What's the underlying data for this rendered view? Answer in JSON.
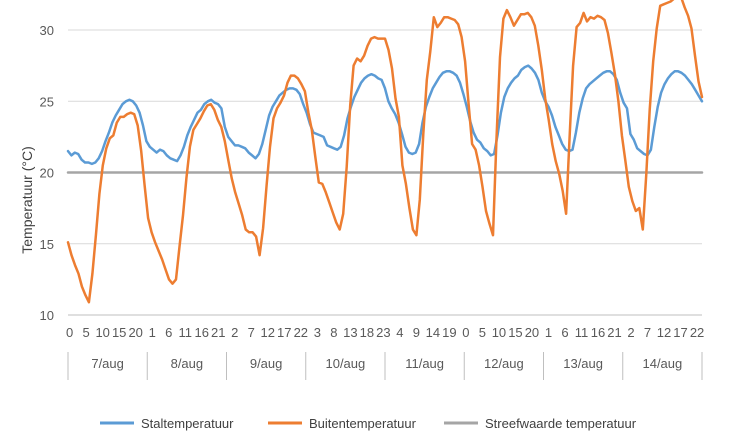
{
  "chart_data": {
    "type": "line",
    "ylabel": "Temperatuur (°C)",
    "ylim": [
      10,
      30
    ],
    "yticks": [
      10,
      15,
      20,
      25,
      30
    ],
    "grid": "horizontal",
    "legend_position": "bottom",
    "days": [
      {
        "label": "7/aug",
        "hour_ticks": [
          "0",
          "5",
          "10",
          "15",
          "20"
        ]
      },
      {
        "label": "8/aug",
        "hour_ticks": [
          "1",
          "6",
          "11",
          "16",
          "21"
        ]
      },
      {
        "label": "9/aug",
        "hour_ticks": [
          "2",
          "7",
          "12",
          "17",
          "22"
        ]
      },
      {
        "label": "10/aug",
        "hour_ticks": [
          "3",
          "8",
          "13",
          "18",
          "23"
        ]
      },
      {
        "label": "11/aug",
        "hour_ticks": [
          "4",
          "9",
          "14",
          "19"
        ]
      },
      {
        "label": "12/aug",
        "hour_ticks": [
          "0",
          "5",
          "10",
          "15",
          "20"
        ]
      },
      {
        "label": "13/aug",
        "hour_ticks": [
          "1",
          "6",
          "11",
          "16",
          "21"
        ]
      },
      {
        "label": "14/aug",
        "hour_ticks": [
          "2",
          "7",
          "12",
          "17",
          "22"
        ]
      }
    ],
    "series": [
      {
        "name": "Staltemperatuur",
        "color": "#5B9BD5",
        "values": [
          21.5,
          21.2,
          21.4,
          21.3,
          20.9,
          20.7,
          20.7,
          20.6,
          20.7,
          21.0,
          21.5,
          22.2,
          22.8,
          23.5,
          24.0,
          24.4,
          24.8,
          25.0,
          25.1,
          25.0,
          24.7,
          24.2,
          23.3,
          22.2,
          21.8,
          21.6,
          21.4,
          21.6,
          21.5,
          21.2,
          21.0,
          20.9,
          20.8,
          21.2,
          21.8,
          22.6,
          23.2,
          23.7,
          24.2,
          24.4,
          24.8,
          25.0,
          25.1,
          24.9,
          24.8,
          24.5,
          23.2,
          22.5,
          22.2,
          21.9,
          21.9,
          21.8,
          21.7,
          21.4,
          21.2,
          21.0,
          21.3,
          22.0,
          23.0,
          24.0,
          24.6,
          25.0,
          25.4,
          25.6,
          25.8,
          25.9,
          25.9,
          25.8,
          25.5,
          24.8,
          24.2,
          23.4,
          22.8,
          22.7,
          22.6,
          22.5,
          21.9,
          21.8,
          21.7,
          21.6,
          21.8,
          22.6,
          23.8,
          24.6,
          25.3,
          25.8,
          26.3,
          26.6,
          26.8,
          26.9,
          26.8,
          26.6,
          26.5,
          25.9,
          25.0,
          24.5,
          24.1,
          23.5,
          22.7,
          21.8,
          21.4,
          21.3,
          21.4,
          22.0,
          23.5,
          24.6,
          25.3,
          25.9,
          26.3,
          26.7,
          27.0,
          27.1,
          27.1,
          27.0,
          26.8,
          26.3,
          25.5,
          24.6,
          23.6,
          22.8,
          22.3,
          22.1,
          21.7,
          21.5,
          21.2,
          21.3,
          22.6,
          24.2,
          25.3,
          25.9,
          26.3,
          26.6,
          26.8,
          27.2,
          27.4,
          27.5,
          27.3,
          27.0,
          26.5,
          25.6,
          25.0,
          24.6,
          24.0,
          23.2,
          22.6,
          22.0,
          21.6,
          21.5,
          21.6,
          22.8,
          24.2,
          25.2,
          25.9,
          26.2,
          26.4,
          26.6,
          26.8,
          27.0,
          27.1,
          27.1,
          26.9,
          26.5,
          25.6,
          24.9,
          24.5,
          22.7,
          22.3,
          21.7,
          21.5,
          21.3,
          21.2,
          21.6,
          23.2,
          24.6,
          25.6,
          26.2,
          26.6,
          26.9,
          27.1,
          27.1,
          27.0,
          26.8,
          26.5,
          26.2,
          25.8,
          25.4,
          25.0
        ]
      },
      {
        "name": "Buitentemperatuur",
        "color": "#ED7D31",
        "values": [
          15.1,
          14.2,
          13.5,
          12.9,
          12.0,
          11.4,
          10.9,
          12.9,
          15.6,
          18.5,
          20.5,
          21.7,
          22.4,
          22.6,
          23.5,
          23.9,
          23.9,
          24.1,
          24.2,
          24.1,
          23.3,
          21.5,
          19.1,
          16.8,
          15.8,
          15.1,
          14.5,
          13.9,
          13.2,
          12.5,
          12.2,
          12.5,
          14.8,
          17.0,
          19.6,
          21.8,
          23.0,
          23.4,
          23.8,
          24.3,
          24.7,
          24.8,
          24.4,
          23.7,
          23.2,
          22.2,
          20.9,
          19.6,
          18.6,
          17.8,
          17.0,
          16.0,
          15.8,
          15.8,
          15.5,
          14.2,
          16.1,
          19.1,
          21.8,
          23.8,
          24.5,
          24.9,
          25.4,
          26.3,
          26.8,
          26.8,
          26.6,
          26.2,
          25.7,
          24.2,
          23.0,
          21.1,
          19.3,
          19.2,
          18.6,
          17.9,
          17.2,
          16.5,
          16.0,
          17.1,
          20.4,
          24.7,
          27.5,
          28.0,
          27.8,
          28.2,
          28.9,
          29.4,
          29.5,
          29.4,
          29.4,
          29.4,
          28.6,
          27.3,
          25.2,
          23.9,
          20.5,
          19.2,
          17.5,
          16.0,
          15.6,
          18.1,
          22.7,
          26.5,
          28.5,
          30.9,
          30.2,
          30.5,
          30.9,
          30.9,
          30.8,
          30.7,
          30.4,
          29.5,
          27.8,
          24.8,
          22.0,
          21.6,
          20.5,
          19.0,
          17.3,
          16.4,
          15.6,
          22.4,
          28.1,
          30.8,
          31.4,
          30.9,
          30.3,
          30.7,
          31.1,
          31.1,
          31.2,
          30.9,
          30.3,
          28.9,
          27.2,
          25.2,
          23.7,
          22.0,
          20.8,
          19.9,
          18.7,
          17.1,
          22.5,
          27.5,
          30.2,
          30.5,
          31.2,
          30.6,
          30.9,
          30.8,
          31.0,
          30.9,
          30.7,
          29.8,
          28.4,
          26.9,
          25.0,
          22.6,
          20.8,
          19.0,
          18.0,
          17.3,
          17.5,
          16.0,
          19.9,
          24.4,
          27.8,
          30.1,
          31.7,
          31.8,
          31.9,
          32.0,
          32.2,
          32.4,
          32.3,
          31.6,
          31.0,
          30.1,
          28.2,
          26.4,
          25.3
        ]
      },
      {
        "name": "Streefwaarde temperatuur",
        "color": "#A5A5A5",
        "values": [
          20,
          20
        ]
      }
    ]
  }
}
